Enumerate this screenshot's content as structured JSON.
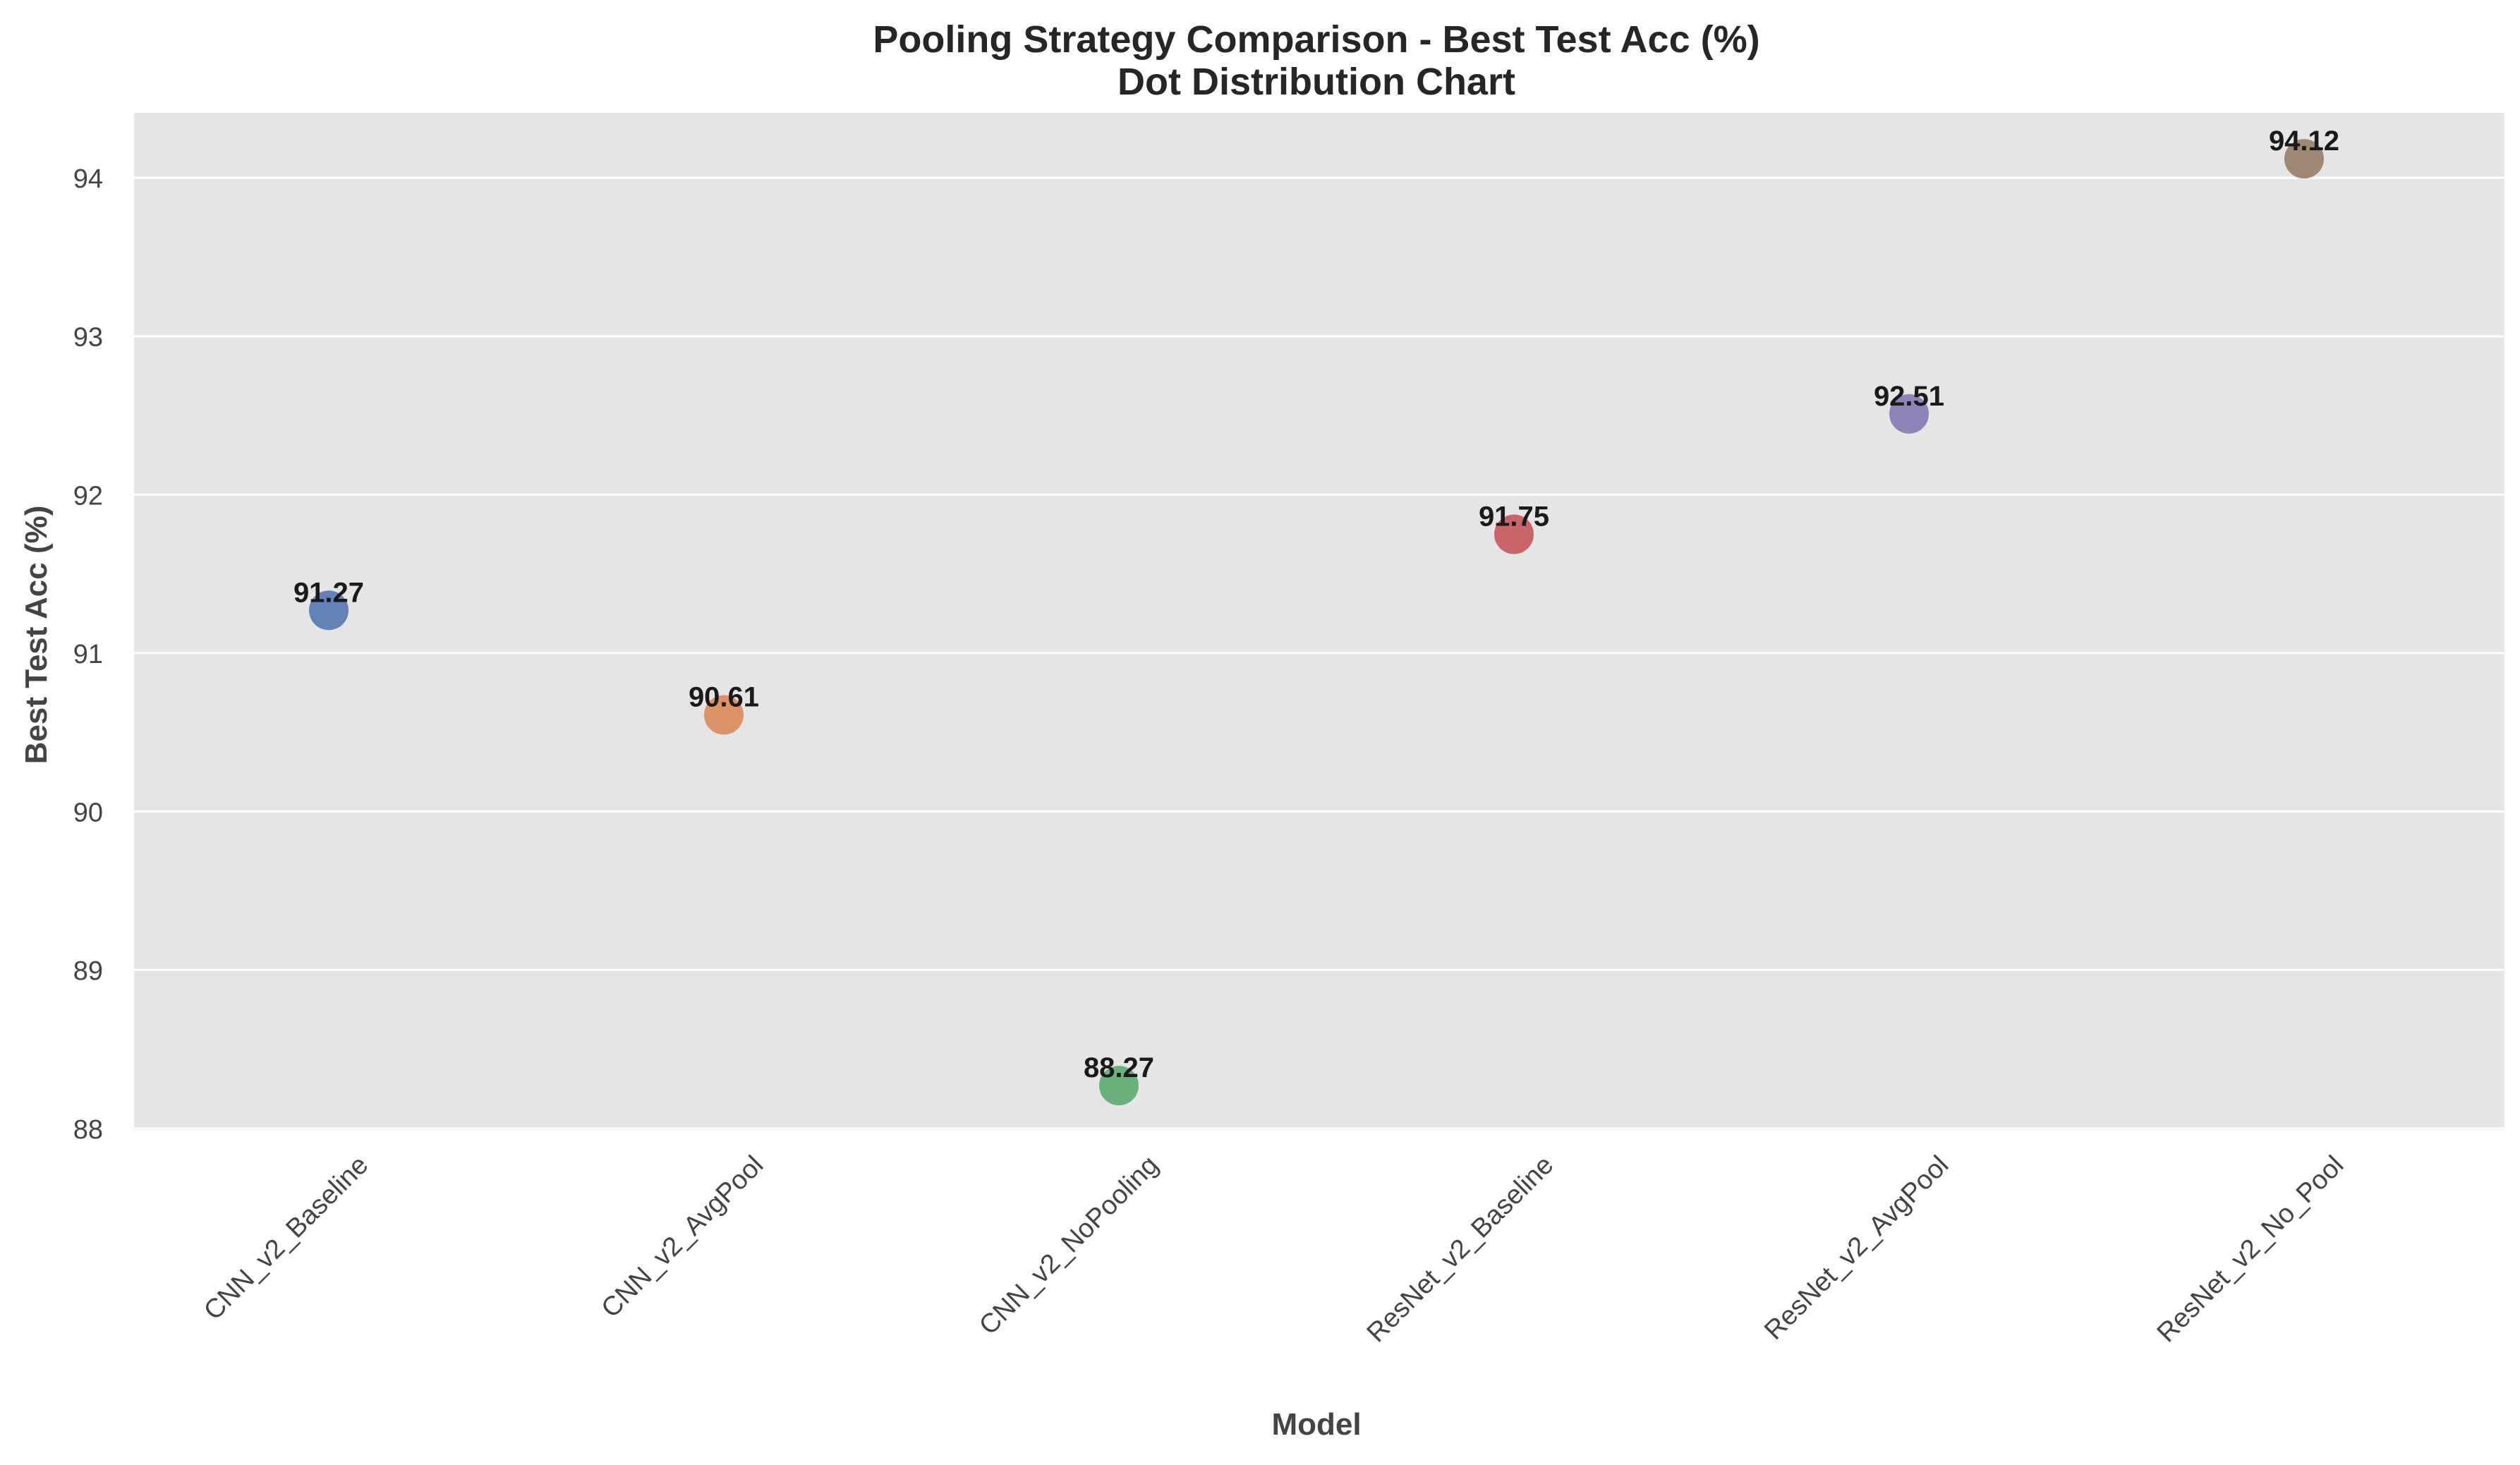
{
  "chart_data": {
    "type": "scatter",
    "title": "Pooling Strategy Comparison - Best Test Acc (%)",
    "subtitle": "Dot Distribution Chart",
    "xlabel": "Model",
    "ylabel": "Best Test Acc (%)",
    "categories": [
      "CNN_v2_Baseline",
      "CNN_v2_AvgPool",
      "CNN_v2_NoPooling",
      "ResNet_v2_Baseline",
      "ResNet_v2_AvgPool",
      "ResNet_v2_No_Pool"
    ],
    "values": [
      91.27,
      90.61,
      88.27,
      91.75,
      92.51,
      94.12
    ],
    "value_labels": [
      "91.27",
      "90.61",
      "88.27",
      "91.75",
      "92.51",
      "94.12"
    ],
    "colors": [
      "#4c72b0",
      "#dd8452",
      "#55a868",
      "#c44e52",
      "#8172b3",
      "#937860"
    ],
    "ylim": [
      87.99,
      94.41
    ],
    "yticks": [
      88,
      89,
      90,
      91,
      92,
      93,
      94
    ],
    "ytick_labels": [
      "88",
      "89",
      "90",
      "91",
      "92",
      "93",
      "94"
    ],
    "grid": true,
    "background": "#e5e5e5",
    "grid_color": "#ffffff",
    "legend": "none"
  }
}
